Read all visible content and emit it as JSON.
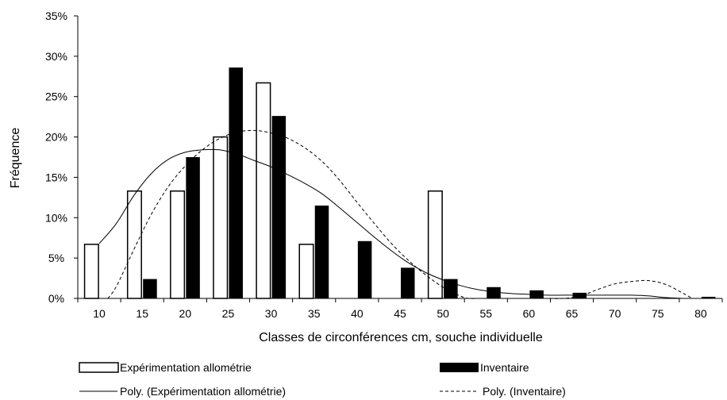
{
  "chart_data": {
    "type": "bar",
    "xlabel": "Classes de circonférences cm, souche individuelle",
    "ylabel": "Fréquence",
    "ylim": [
      0,
      35
    ],
    "yticks": [
      "0%",
      "5%",
      "10%",
      "15%",
      "20%",
      "25%",
      "30%",
      "35%"
    ],
    "categories": [
      "10",
      "15",
      "20",
      "25",
      "30",
      "35",
      "40",
      "45",
      "50",
      "55",
      "60",
      "65",
      "70",
      "75",
      "80"
    ],
    "series": [
      {
        "name": "Expérimentation allométrie",
        "style": "hollow",
        "color": "#000000",
        "values": [
          6.7,
          13.3,
          13.3,
          20.0,
          26.7,
          6.7,
          0,
          0,
          13.3,
          0,
          0,
          0,
          0,
          0,
          0
        ]
      },
      {
        "name": "Inventaire",
        "style": "filled",
        "color": "#000000",
        "values": [
          0,
          2.4,
          17.5,
          28.6,
          22.6,
          11.5,
          7.1,
          3.8,
          2.4,
          1.4,
          1.0,
          0.7,
          0,
          0,
          0.2
        ]
      }
    ],
    "trendlines": [
      {
        "name": "Poly. (Expérimentation allométrie)",
        "dash": "solid",
        "x": [
          10,
          12,
          14,
          16,
          18,
          20,
          22,
          24,
          26,
          28,
          30,
          32,
          34,
          36,
          38,
          40,
          42,
          44,
          46,
          48,
          50,
          52,
          54,
          56,
          58,
          60,
          62,
          64,
          66,
          68,
          70,
          72,
          74,
          76,
          78
        ],
        "y": [
          6.8,
          9.3,
          12.7,
          15.4,
          17.2,
          18.1,
          18.4,
          18.4,
          17.9,
          17.1,
          16.3,
          15.3,
          14.2,
          12.9,
          11.2,
          9.4,
          7.6,
          5.9,
          4.4,
          3.2,
          2.3,
          1.6,
          1.1,
          0.8,
          0.6,
          0.5,
          0.4,
          0.4,
          0.4,
          0.4,
          0.4,
          0.4,
          0.3,
          0.1,
          0.0
        ]
      },
      {
        "name": "Poly. (Inventaire)",
        "dash": "dashed",
        "x": [
          11,
          12,
          14,
          16,
          18,
          20,
          22,
          24,
          26,
          28,
          30,
          32,
          34,
          36,
          38,
          40,
          42,
          44,
          46,
          48,
          50,
          52,
          53,
          54,
          56,
          58,
          60,
          62,
          64,
          66,
          68,
          70,
          72,
          74,
          76,
          78,
          79
        ],
        "y": [
          0,
          1.5,
          6.0,
          10.3,
          13.8,
          16.4,
          18.4,
          19.8,
          20.6,
          20.8,
          20.5,
          19.8,
          18.6,
          16.9,
          14.6,
          11.9,
          9.3,
          6.8,
          4.7,
          2.9,
          1.4,
          0.3,
          0,
          0,
          0,
          0,
          0,
          0,
          0,
          0.3,
          1.1,
          1.8,
          2.1,
          2.2,
          1.7,
          0.6,
          0
        ]
      }
    ],
    "legend_placement": "bottom",
    "grid": false
  }
}
